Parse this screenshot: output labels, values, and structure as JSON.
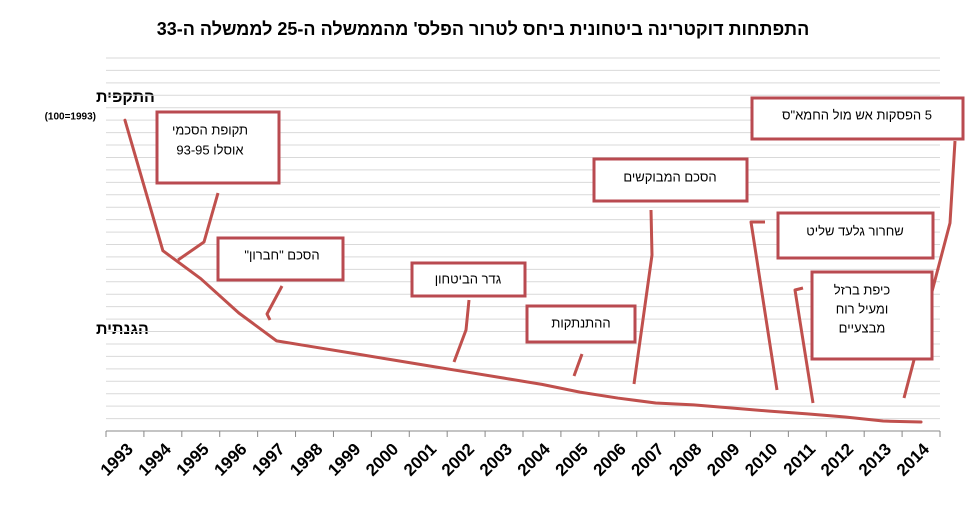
{
  "chart_data": {
    "type": "line",
    "title": "התפתחות דוקטרינה ביטחונית ביחס לטרור הפלס' מהממשלה ה-25 לממשלה ה-33",
    "y_label_top": "התקפית",
    "y_label_top_note": "(100=1993)",
    "y_label_bottom": "הגנתית",
    "categories": [
      "1993",
      "1994",
      "1995",
      "1996",
      "1997",
      "1998",
      "1999",
      "2000",
      "2001",
      "2002",
      "2003",
      "2004",
      "2005",
      "2006",
      "2007",
      "2008",
      "2009",
      "2010",
      "2011",
      "2012",
      "2013",
      "2014"
    ],
    "values": [
      100,
      58,
      49,
      38,
      29,
      27,
      25,
      23,
      21,
      19,
      17,
      15,
      12.5,
      10.6,
      9,
      8.4,
      7.4,
      6.4,
      5.5,
      4.5,
      3.2,
      2.9
    ],
    "color": "#c0504d",
    "ylim": [
      0,
      120
    ],
    "yticks": [
      4,
      8,
      12,
      16,
      20,
      24,
      28,
      32,
      36,
      40,
      44,
      48,
      52,
      56,
      60,
      64,
      68,
      72,
      76,
      80,
      84,
      88,
      92,
      96,
      100,
      104,
      108,
      112,
      116,
      120
    ],
    "grid": true,
    "annotations": [
      {
        "lines": [
          "תקופת הסכמי",
          "אוסלו 93-95"
        ]
      },
      {
        "lines": [
          "הסכם \"חברון\""
        ]
      },
      {
        "lines": [
          "גדר הביטחון"
        ]
      },
      {
        "lines": [
          "ההתנתקות"
        ]
      },
      {
        "lines": [
          "הסכם המבוקשים"
        ]
      },
      {
        "lines": [
          "שחרור גלעד שליט"
        ]
      },
      {
        "lines": [
          "כיפת ברזל",
          "ומעיל רוח",
          "מבצעיים"
        ]
      },
      {
        "lines": [
          "5 הפסקות אש מול החמא\"ס"
        ]
      }
    ]
  }
}
